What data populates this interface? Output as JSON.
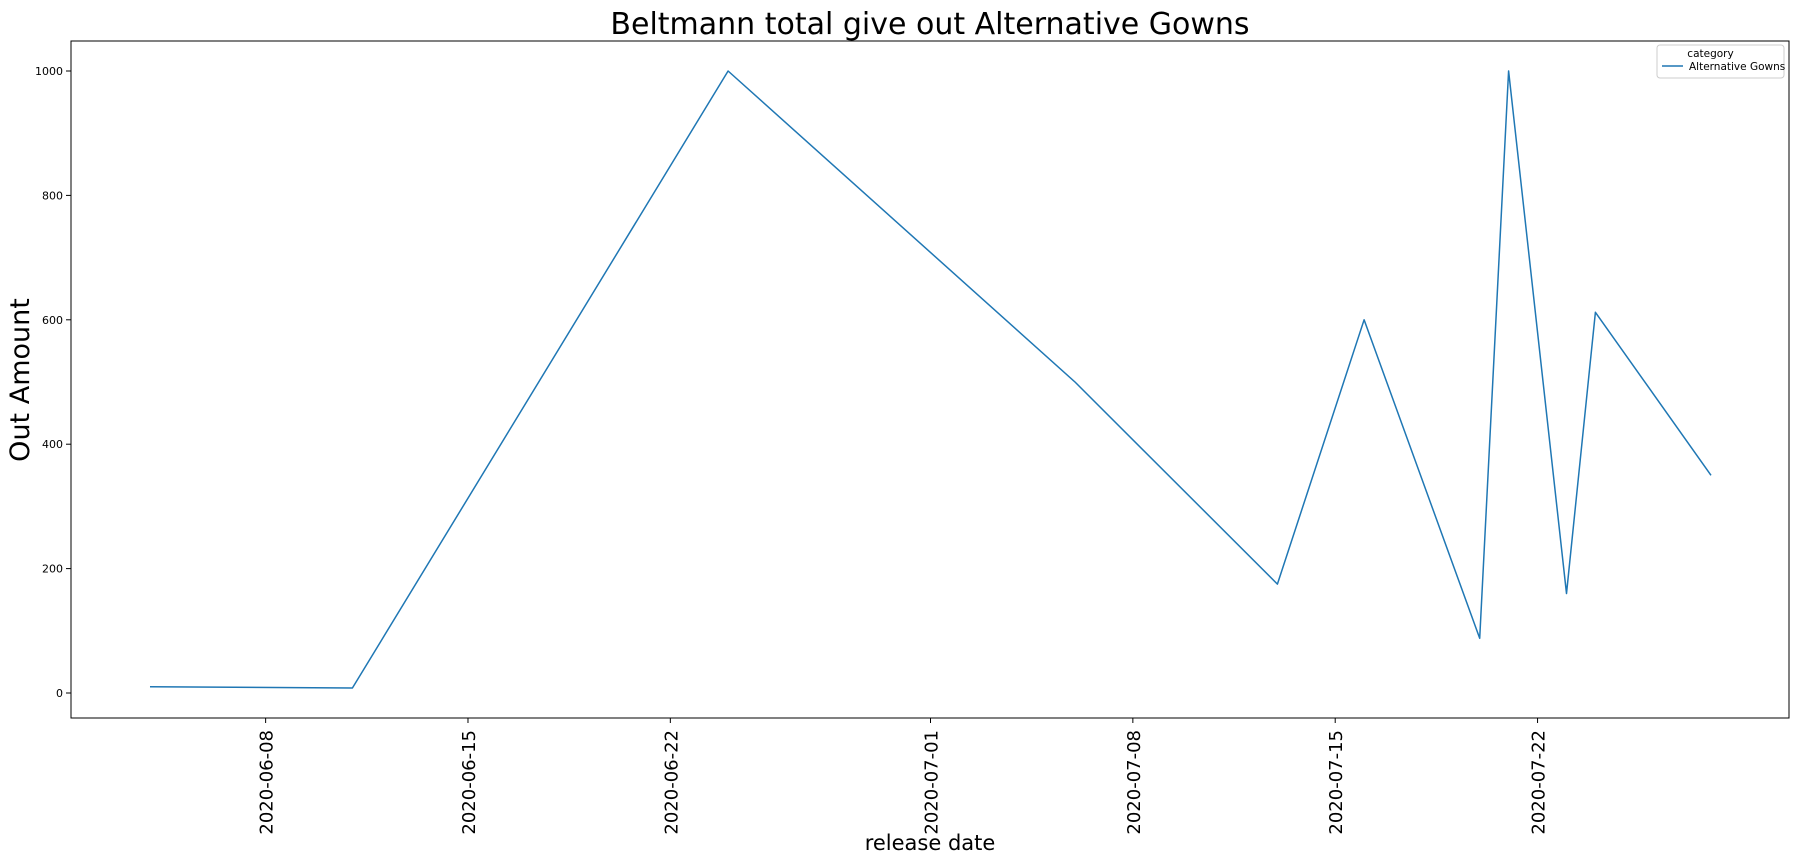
{
  "chart_data": {
    "type": "line",
    "title": "Beltmann total give out Alternative Gowns",
    "xlabel": "release date",
    "ylabel": "Out Amount",
    "x_tick_labels": [
      "2020-06-08",
      "2020-06-15",
      "2020-06-22",
      "2020-07-01",
      "2020-07-08",
      "2020-07-15",
      "2020-07-22"
    ],
    "y_ticks": [
      0,
      200,
      400,
      600,
      800,
      1000
    ],
    "xlim": [
      "2020-06-01",
      "2020-08-01"
    ],
    "ylim": [
      -40,
      1050
    ],
    "grid": false,
    "legend": {
      "title": "category",
      "position": "top-right"
    },
    "series": [
      {
        "name": "Alternative Gowns",
        "color": "#1f77b4",
        "points": [
          {
            "x": "2020-06-04",
            "y": 10
          },
          {
            "x": "2020-06-11",
            "y": 8
          },
          {
            "x": "2020-06-24",
            "y": 1000
          },
          {
            "x": "2020-07-06",
            "y": 500
          },
          {
            "x": "2020-07-13",
            "y": 175
          },
          {
            "x": "2020-07-16",
            "y": 600
          },
          {
            "x": "2020-07-20",
            "y": 88
          },
          {
            "x": "2020-07-21",
            "y": 1000
          },
          {
            "x": "2020-07-23",
            "y": 160
          },
          {
            "x": "2020-07-24",
            "y": 612
          },
          {
            "x": "2020-07-28",
            "y": 350
          }
        ]
      }
    ]
  }
}
